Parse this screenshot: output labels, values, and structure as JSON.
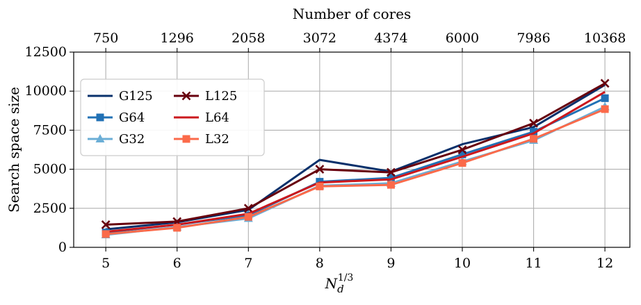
{
  "chart_data": {
    "type": "line",
    "xlabel": "N_d^{1/3}",
    "xlabel_base": "N",
    "xlabel_sub": "d",
    "xlabel_sup": "1/3",
    "ylabel": "Search space size",
    "top_xlabel": "Number of cores",
    "x": [
      5,
      6,
      7,
      8,
      9,
      10,
      11,
      12
    ],
    "x_tick_labels": [
      "5",
      "6",
      "7",
      "8",
      "9",
      "10",
      "11",
      "12"
    ],
    "top_tick_labels": [
      "750",
      "1296",
      "2058",
      "3072",
      "4374",
      "6000",
      "7986",
      "10368"
    ],
    "xlim": [
      4.55,
      12.35
    ],
    "ylim": [
      0,
      12500
    ],
    "y_ticks": [
      0,
      2500,
      5000,
      7500,
      10000,
      12500
    ],
    "y_tick_labels": [
      "0",
      "2500",
      "5000",
      "7500",
      "10000",
      "12500"
    ],
    "grid": true,
    "legend": {
      "position": "upper-left",
      "columns": 2
    },
    "series": [
      {
        "name": "G125",
        "color": "#08306b",
        "marker": "none",
        "values": [
          1150,
          1600,
          2400,
          5600,
          4850,
          6600,
          7700,
          10400
        ]
      },
      {
        "name": "G64",
        "color": "#2171b5",
        "marker": "square",
        "values": [
          950,
          1450,
          2050,
          4200,
          4450,
          5950,
          7400,
          9550
        ]
      },
      {
        "name": "G32",
        "color": "#6baed6",
        "marker": "triangle",
        "values": [
          800,
          1300,
          1850,
          3950,
          4100,
          5500,
          6850,
          9000
        ]
      },
      {
        "name": "L125",
        "color": "#67000d",
        "marker": "x",
        "values": [
          1450,
          1650,
          2500,
          5000,
          4800,
          6250,
          7950,
          10500
        ]
      },
      {
        "name": "L64",
        "color": "#cb181d",
        "marker": "none",
        "values": [
          1000,
          1450,
          2150,
          4150,
          4350,
          5800,
          7300,
          9950
        ]
      },
      {
        "name": "L32",
        "color": "#fb6a4a",
        "marker": "square",
        "values": [
          850,
          1250,
          1950,
          3900,
          4000,
          5400,
          6950,
          8850
        ]
      }
    ]
  }
}
